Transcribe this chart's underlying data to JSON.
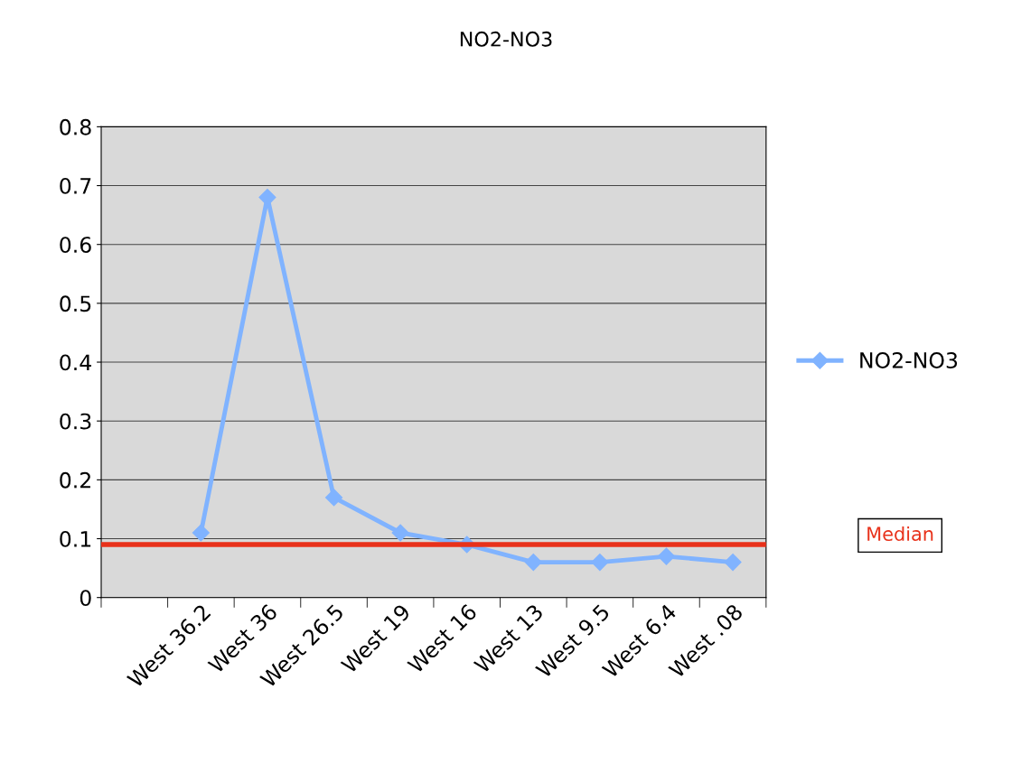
{
  "chart_data": {
    "type": "line",
    "title": "NO2-NO3",
    "categories": [
      null,
      "West 36.2",
      "West 36",
      "West 26.5",
      "West 19",
      "West 16",
      "West 13",
      "West 9.5",
      "West 6.4",
      "West .08"
    ],
    "series": [
      {
        "name": "NO2-NO3",
        "color": "#80b3ff",
        "values": [
          null,
          0.11,
          0.68,
          0.17,
          0.11,
          0.09,
          0.06,
          0.06,
          0.07,
          0.06
        ]
      }
    ],
    "ylim": [
      0,
      0.8
    ],
    "yticks": [
      0,
      0.1,
      0.2,
      0.3,
      0.4,
      0.5,
      0.6,
      0.7,
      0.8
    ],
    "ref_lines": [
      {
        "axis": "y",
        "value": 0.09,
        "label": "Median",
        "color": "#e8311a"
      }
    ],
    "grid": "y",
    "legend": "right",
    "marker": "diamond",
    "line_style": "solid"
  }
}
